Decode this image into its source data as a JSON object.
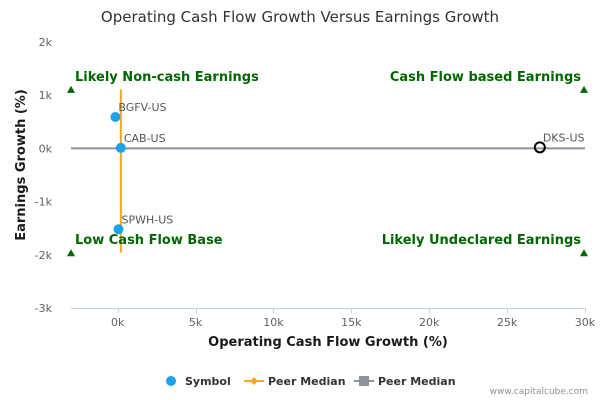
{
  "chart_data": {
    "type": "scatter",
    "title": "Operating Cash Flow Growth Versus Earnings Growth",
    "xlabel": "Operating Cash Flow Growth (%)",
    "ylabel": "Earnings Growth (%)",
    "xlim": [
      -3000,
      30000
    ],
    "ylim": [
      -3000,
      2000
    ],
    "x_ticks": [
      {
        "value": 0,
        "label": "0k"
      },
      {
        "value": 5000,
        "label": "5k"
      },
      {
        "value": 10000,
        "label": "10k"
      },
      {
        "value": 15000,
        "label": "15k"
      },
      {
        "value": 20000,
        "label": "20k"
      },
      {
        "value": 25000,
        "label": "25k"
      },
      {
        "value": 30000,
        "label": "30k"
      }
    ],
    "y_ticks": [
      {
        "value": 2000,
        "label": "2k"
      },
      {
        "value": 1000,
        "label": "1k"
      },
      {
        "value": 0,
        "label": "0k"
      },
      {
        "value": -1000,
        "label": "-1k"
      },
      {
        "value": -2000,
        "label": "-2k"
      },
      {
        "value": -3000,
        "label": "-3k"
      }
    ],
    "grid": false,
    "points": [
      {
        "symbol": "BGFV-US",
        "x": -150,
        "y": 590,
        "highlight": false
      },
      {
        "symbol": "CAB-US",
        "x": 200,
        "y": 10,
        "highlight": false
      },
      {
        "symbol": "SPWH-US",
        "x": 50,
        "y": -1520,
        "highlight": false
      },
      {
        "symbol": "DKS-US",
        "x": 27100,
        "y": 20,
        "highlight": true
      }
    ],
    "peer_median_x": {
      "x": 200,
      "y_range": [
        -1960,
        1110
      ]
    },
    "peer_median_y": {
      "y": 0
    },
    "quadrant_labels": {
      "top_left": "Likely Non-cash Earnings",
      "top_right": "Cash Flow based Earnings",
      "bottom_left": "Low Cash Flow Base",
      "bottom_right": "Likely Undeclared Earnings"
    },
    "quadrant_marker_y": {
      "top": 1100,
      "bottom": -1970
    },
    "legend": [
      {
        "key": "symbol",
        "label": "Symbol",
        "color": "#1aa3e8"
      },
      {
        "key": "peer_x",
        "label": "Peer Median",
        "color": "#f5a623"
      },
      {
        "key": "peer_y",
        "label": "Peer Median",
        "color": "#8c939c"
      }
    ],
    "legend_position": "bottom-center",
    "colors": {
      "point": "#1aa3e8",
      "highlight_stroke": "#000000",
      "peer_x_line": "#f5a623",
      "peer_y_line": "#8c939c",
      "quadrant_marker": "#006600",
      "axis_line": "#c0d0e0"
    },
    "credit": "www.capitalcube.com"
  }
}
